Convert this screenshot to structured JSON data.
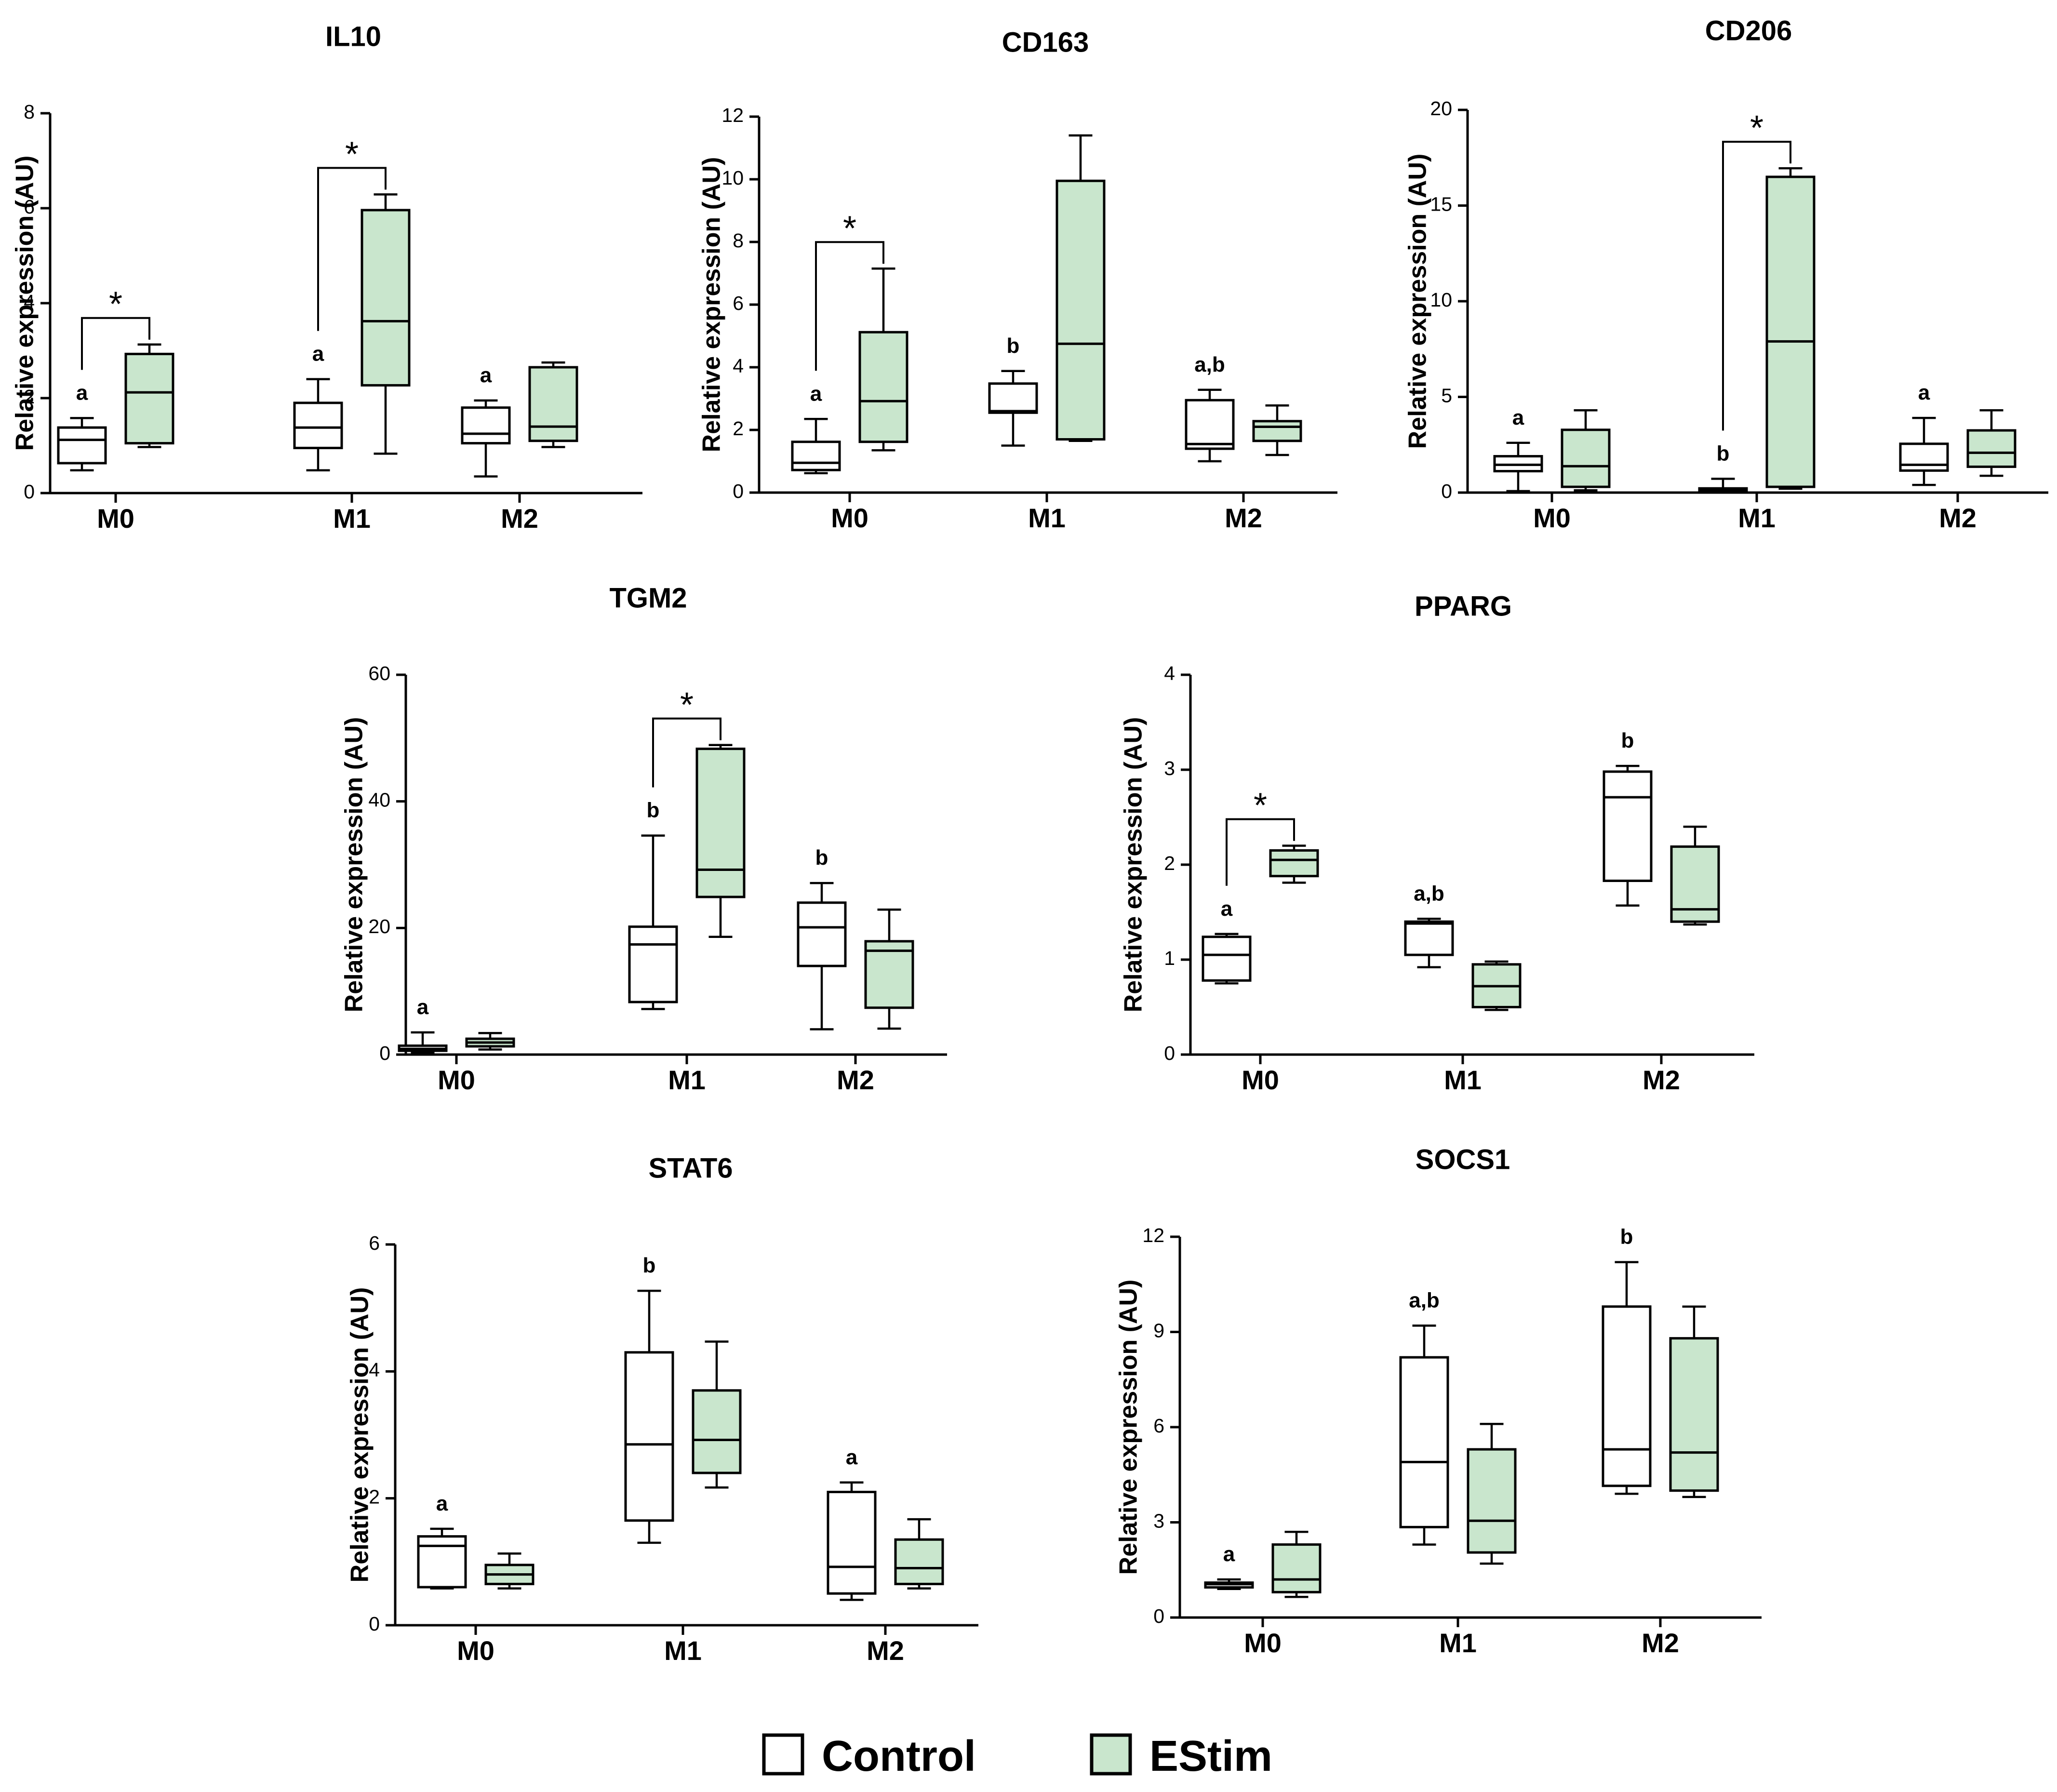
{
  "colors": {
    "control": "#ffffff",
    "estim": "#c9e6cd",
    "stroke": "#000000"
  },
  "legend": {
    "control_label": "Control",
    "estim_label": "EStim"
  },
  "chart_data": [
    {
      "type": "box",
      "title": "IL10",
      "ylabel": "Relative expression (AU)",
      "ylim": [
        0,
        8
      ],
      "yticks": [
        0,
        2,
        4,
        6,
        8
      ],
      "categories": [
        "M0",
        "M1",
        "M2"
      ],
      "series": [
        "Control",
        "EStim"
      ],
      "boxes": [
        {
          "category": "M0",
          "series": "Control",
          "min": 0.48,
          "q1": 0.63,
          "median": 1.12,
          "q3": 1.38,
          "max": 1.58
        },
        {
          "category": "M0",
          "series": "EStim",
          "min": 0.97,
          "q1": 1.05,
          "median": 2.12,
          "q3": 2.93,
          "max": 3.13
        },
        {
          "category": "M1",
          "series": "Control",
          "min": 0.48,
          "q1": 0.95,
          "median": 1.38,
          "q3": 1.9,
          "max": 2.4
        },
        {
          "category": "M1",
          "series": "EStim",
          "min": 0.83,
          "q1": 2.27,
          "median": 3.62,
          "q3": 5.96,
          "max": 6.29
        },
        {
          "category": "M2",
          "series": "Control",
          "min": 0.35,
          "q1": 1.05,
          "median": 1.25,
          "q3": 1.8,
          "max": 1.95
        },
        {
          "category": "M2",
          "series": "EStim",
          "min": 0.97,
          "q1": 1.1,
          "median": 1.4,
          "q3": 2.65,
          "max": 2.75
        }
      ],
      "letters": [
        {
          "category": "M0",
          "text": "a"
        },
        {
          "category": "M1",
          "text": "a"
        },
        {
          "category": "M2",
          "text": "a"
        }
      ],
      "brackets": [
        {
          "category": "M0",
          "text": "*"
        },
        {
          "category": "M1",
          "text": "*"
        }
      ]
    },
    {
      "type": "box",
      "title": "CD163",
      "ylabel": "Relative expression (AU)",
      "ylim": [
        0,
        12
      ],
      "yticks": [
        0,
        2,
        4,
        6,
        8,
        10,
        12
      ],
      "categories": [
        "M0",
        "M1",
        "M2"
      ],
      "series": [
        "Control",
        "EStim"
      ],
      "boxes": [
        {
          "category": "M0",
          "series": "Control",
          "min": 0.62,
          "q1": 0.72,
          "median": 0.95,
          "q3": 1.62,
          "max": 2.35
        },
        {
          "category": "M0",
          "series": "EStim",
          "min": 1.35,
          "q1": 1.62,
          "median": 2.92,
          "q3": 5.12,
          "max": 7.15
        },
        {
          "category": "M1",
          "series": "Control",
          "min": 1.5,
          "q1": 2.55,
          "median": 2.6,
          "q3": 3.48,
          "max": 3.88
        },
        {
          "category": "M1",
          "series": "EStim",
          "min": 1.65,
          "q1": 1.7,
          "median": 4.75,
          "q3": 9.95,
          "max": 11.4
        },
        {
          "category": "M2",
          "series": "Control",
          "min": 1.0,
          "q1": 1.4,
          "median": 1.55,
          "q3": 2.95,
          "max": 3.28
        },
        {
          "category": "M2",
          "series": "EStim",
          "min": 1.2,
          "q1": 1.65,
          "median": 2.1,
          "q3": 2.28,
          "max": 2.78
        }
      ],
      "letters": [
        {
          "category": "M0",
          "text": "a"
        },
        {
          "category": "M1",
          "text": "b"
        },
        {
          "category": "M2",
          "text": "a,b"
        }
      ],
      "brackets": [
        {
          "category": "M0",
          "text": "*"
        }
      ]
    },
    {
      "type": "box",
      "title": "CD206",
      "ylabel": "Relative expression (AU)",
      "ylim": [
        0,
        20
      ],
      "yticks": [
        0,
        5,
        10,
        15,
        20
      ],
      "categories": [
        "M0",
        "M1",
        "M2"
      ],
      "series": [
        "Control",
        "EStim"
      ],
      "boxes": [
        {
          "category": "M0",
          "series": "Control",
          "min": 0.08,
          "q1": 1.12,
          "median": 1.45,
          "q3": 1.9,
          "max": 2.6
        },
        {
          "category": "M0",
          "series": "EStim",
          "min": 0.12,
          "q1": 0.3,
          "median": 1.38,
          "q3": 3.28,
          "max": 4.3
        },
        {
          "category": "M1",
          "series": "Control",
          "min": 0.02,
          "q1": 0.05,
          "median": 0.12,
          "q3": 0.22,
          "max": 0.72
        },
        {
          "category": "M1",
          "series": "EStim",
          "min": 0.2,
          "q1": 0.3,
          "median": 7.9,
          "q3": 16.5,
          "max": 16.95
        },
        {
          "category": "M2",
          "series": "Control",
          "min": 0.4,
          "q1": 1.15,
          "median": 1.45,
          "q3": 2.55,
          "max": 3.9
        },
        {
          "category": "M2",
          "series": "EStim",
          "min": 0.88,
          "q1": 1.35,
          "median": 2.08,
          "q3": 3.25,
          "max": 4.3
        }
      ],
      "letters": [
        {
          "category": "M0",
          "text": "a"
        },
        {
          "category": "M1",
          "text": "b"
        },
        {
          "category": "M2",
          "text": "a"
        }
      ],
      "brackets": [
        {
          "category": "M1",
          "text": "*"
        }
      ]
    },
    {
      "type": "box",
      "title": "TGM2",
      "ylabel": "Relative expression (AU)",
      "ylim": [
        0,
        60
      ],
      "yticks": [
        0,
        20,
        40,
        60
      ],
      "categories": [
        "M0",
        "M1",
        "M2"
      ],
      "series": [
        "Control",
        "EStim"
      ],
      "boxes": [
        {
          "category": "M0",
          "series": "Control",
          "min": 0.3,
          "q1": 0.6,
          "median": 0.9,
          "q3": 1.4,
          "max": 3.5
        },
        {
          "category": "M0",
          "series": "EStim",
          "min": 0.8,
          "q1": 1.3,
          "median": 1.9,
          "q3": 2.5,
          "max": 3.4
        },
        {
          "category": "M1",
          "series": "Control",
          "min": 7.2,
          "q1": 8.3,
          "median": 17.4,
          "q3": 20.2,
          "max": 34.6
        },
        {
          "category": "M1",
          "series": "EStim",
          "min": 18.6,
          "q1": 24.9,
          "median": 29.2,
          "q3": 48.3,
          "max": 48.9
        },
        {
          "category": "M2",
          "series": "Control",
          "min": 4.0,
          "q1": 14.0,
          "median": 20.1,
          "q3": 24.0,
          "max": 27.1
        },
        {
          "category": "M2",
          "series": "EStim",
          "min": 4.1,
          "q1": 7.4,
          "median": 16.4,
          "q3": 17.9,
          "max": 22.9
        }
      ],
      "letters": [
        {
          "category": "M0",
          "text": "a"
        },
        {
          "category": "M1",
          "text": "b"
        },
        {
          "category": "M2",
          "text": "b"
        }
      ],
      "brackets": [
        {
          "category": "M1",
          "text": "*"
        }
      ]
    },
    {
      "type": "box",
      "title": "PPARG",
      "ylabel": "Relative expression (AU)",
      "ylim": [
        0,
        4
      ],
      "yticks": [
        0,
        1,
        2,
        3,
        4
      ],
      "categories": [
        "M0",
        "M1",
        "M2"
      ],
      "series": [
        "Control",
        "EStim"
      ],
      "boxes": [
        {
          "category": "M0",
          "series": "Control",
          "min": 0.75,
          "q1": 0.78,
          "median": 1.05,
          "q3": 1.24,
          "max": 1.27
        },
        {
          "category": "M0",
          "series": "EStim",
          "min": 1.81,
          "q1": 1.88,
          "median": 2.05,
          "q3": 2.15,
          "max": 2.2
        },
        {
          "category": "M1",
          "series": "Control",
          "min": 0.92,
          "q1": 1.05,
          "median": 1.38,
          "q3": 1.4,
          "max": 1.43
        },
        {
          "category": "M1",
          "series": "EStim",
          "min": 0.47,
          "q1": 0.5,
          "median": 0.72,
          "q3": 0.95,
          "max": 0.98
        },
        {
          "category": "M2",
          "series": "Control",
          "min": 1.57,
          "q1": 1.83,
          "median": 2.71,
          "q3": 2.98,
          "max": 3.04
        },
        {
          "category": "M2",
          "series": "EStim",
          "min": 1.37,
          "q1": 1.4,
          "median": 1.53,
          "q3": 2.19,
          "max": 2.4
        }
      ],
      "letters": [
        {
          "category": "M0",
          "text": "a"
        },
        {
          "category": "M1",
          "text": "a,b"
        },
        {
          "category": "M2",
          "text": "b"
        }
      ],
      "brackets": [
        {
          "category": "M0",
          "text": "*"
        }
      ]
    },
    {
      "type": "box",
      "title": "STAT6",
      "ylabel": "Relative expression (AU)",
      "ylim": [
        0,
        6
      ],
      "yticks": [
        0,
        2,
        4,
        6
      ],
      "categories": [
        "M0",
        "M1",
        "M2"
      ],
      "series": [
        "Control",
        "EStim"
      ],
      "boxes": [
        {
          "category": "M0",
          "series": "Control",
          "min": 0.58,
          "q1": 0.6,
          "median": 1.25,
          "q3": 1.4,
          "max": 1.52
        },
        {
          "category": "M0",
          "series": "EStim",
          "min": 0.58,
          "q1": 0.65,
          "median": 0.8,
          "q3": 0.95,
          "max": 1.13
        },
        {
          "category": "M1",
          "series": "Control",
          "min": 1.3,
          "q1": 1.65,
          "median": 2.85,
          "q3": 4.3,
          "max": 5.27
        },
        {
          "category": "M1",
          "series": "EStim",
          "min": 2.17,
          "q1": 2.4,
          "median": 2.92,
          "q3": 3.7,
          "max": 4.47
        },
        {
          "category": "M2",
          "series": "Control",
          "min": 0.4,
          "q1": 0.5,
          "median": 0.92,
          "q3": 2.1,
          "max": 2.25
        },
        {
          "category": "M2",
          "series": "EStim",
          "min": 0.58,
          "q1": 0.65,
          "median": 0.9,
          "q3": 1.35,
          "max": 1.67
        }
      ],
      "letters": [
        {
          "category": "M0",
          "text": "a"
        },
        {
          "category": "M1",
          "text": "b"
        },
        {
          "category": "M2",
          "text": "a"
        }
      ],
      "brackets": []
    },
    {
      "type": "box",
      "title": "SOCS1",
      "ylabel": "Relative expression (AU)",
      "ylim": [
        0,
        12
      ],
      "yticks": [
        0,
        3,
        6,
        9,
        12
      ],
      "categories": [
        "M0",
        "M1",
        "M2"
      ],
      "series": [
        "Control",
        "EStim"
      ],
      "boxes": [
        {
          "category": "M0",
          "series": "Control",
          "min": 0.9,
          "q1": 0.95,
          "median": 1.05,
          "q3": 1.1,
          "max": 1.2
        },
        {
          "category": "M0",
          "series": "EStim",
          "min": 0.65,
          "q1": 0.8,
          "median": 1.2,
          "q3": 2.3,
          "max": 2.7
        },
        {
          "category": "M1",
          "series": "Control",
          "min": 2.3,
          "q1": 2.85,
          "median": 4.9,
          "q3": 8.2,
          "max": 9.2
        },
        {
          "category": "M1",
          "series": "EStim",
          "min": 1.7,
          "q1": 2.05,
          "median": 3.05,
          "q3": 5.3,
          "max": 6.1
        },
        {
          "category": "M2",
          "series": "Control",
          "min": 3.9,
          "q1": 4.15,
          "median": 5.3,
          "q3": 9.8,
          "max": 11.2
        },
        {
          "category": "M2",
          "series": "EStim",
          "min": 3.8,
          "q1": 4.0,
          "median": 5.2,
          "q3": 8.8,
          "max": 9.8
        }
      ],
      "letters": [
        {
          "category": "M0",
          "text": "a"
        },
        {
          "category": "M1",
          "text": "a,b"
        },
        {
          "category": "M2",
          "text": "b"
        }
      ],
      "brackets": []
    }
  ]
}
